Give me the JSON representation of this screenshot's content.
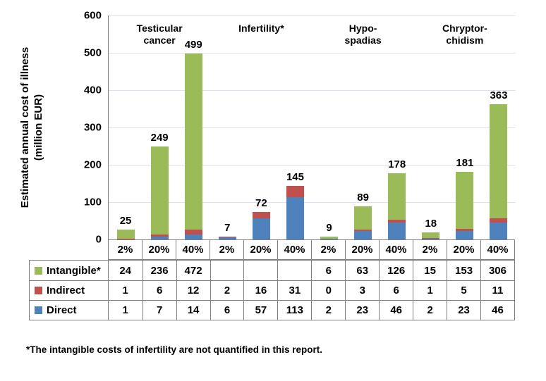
{
  "figure": {
    "footnote": "*The intangible costs of infertility are not quantified in this report."
  },
  "chart_data": {
    "type": "bar",
    "stacked": true,
    "title": "",
    "ylabel_line1": "Estimated annual cost of illness",
    "ylabel_line2": "(million EUR)",
    "ylim": [
      0,
      600
    ],
    "yticks": [
      0,
      100,
      200,
      300,
      400,
      500,
      600
    ],
    "grid": true,
    "legend_position": "left-of-data-table",
    "groups": [
      {
        "label_lines": [
          "Testicular",
          "cancer"
        ]
      },
      {
        "label_lines": [
          "Infertility*"
        ]
      },
      {
        "label_lines": [
          "Hypo-",
          "spadias"
        ]
      },
      {
        "label_lines": [
          "Chryptor-",
          "chidism"
        ]
      }
    ],
    "categories": [
      "2%",
      "20%",
      "40%",
      "2%",
      "20%",
      "40%",
      "2%",
      "20%",
      "40%",
      "2%",
      "20%",
      "40%"
    ],
    "series": [
      {
        "name": "Intangible*",
        "color": "#9BBB59",
        "values": [
          24,
          236,
          472,
          null,
          null,
          null,
          6,
          63,
          126,
          15,
          153,
          306
        ]
      },
      {
        "name": "Indirect",
        "color": "#C0504D",
        "values": [
          1,
          6,
          12,
          2,
          16,
          31,
          0,
          3,
          6,
          1,
          5,
          11
        ]
      },
      {
        "name": "Direct",
        "color": "#4F81BD",
        "values": [
          1,
          7,
          14,
          6,
          57,
          113,
          2,
          23,
          46,
          2,
          23,
          46
        ]
      }
    ],
    "bar_labels": [
      25,
      249,
      499,
      7,
      72,
      145,
      9,
      89,
      178,
      18,
      181,
      363
    ]
  }
}
